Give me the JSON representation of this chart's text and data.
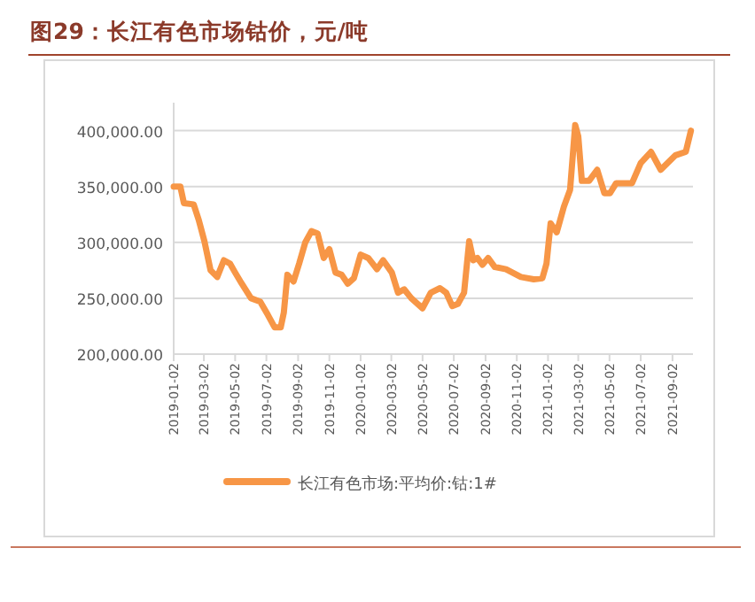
{
  "chart_data": {
    "type": "line",
    "title": "图29：长江有色市场钴价，元/吨",
    "x": [
      "2019-01-02",
      "2019-01-15",
      "2019-01-22",
      "2019-02-10",
      "2019-02-20",
      "2019-03-03",
      "2019-03-15",
      "2019-03-28",
      "2019-04-10",
      "2019-04-22",
      "2019-05-02",
      "2019-05-15",
      "2019-06-02",
      "2019-06-20",
      "2019-07-05",
      "2019-07-18",
      "2019-07-30",
      "2019-08-05",
      "2019-08-12",
      "2019-08-24",
      "2019-09-04",
      "2019-09-16",
      "2019-09-28",
      "2019-10-10",
      "2019-10-22",
      "2019-11-02",
      "2019-11-14",
      "2019-11-26",
      "2019-12-08",
      "2019-12-20",
      "2020-01-02",
      "2020-01-17",
      "2020-02-03",
      "2020-02-15",
      "2020-03-03",
      "2020-03-15",
      "2020-03-27",
      "2020-04-10",
      "2020-04-22",
      "2020-05-02",
      "2020-05-18",
      "2020-06-05",
      "2020-06-17",
      "2020-06-29",
      "2020-07-10",
      "2020-07-22",
      "2020-08-01",
      "2020-08-09",
      "2020-08-17",
      "2020-08-27",
      "2020-09-07",
      "2020-09-20",
      "2020-10-12",
      "2020-11-10",
      "2020-12-05",
      "2020-12-22",
      "2020-12-30",
      "2021-01-07",
      "2021-01-19",
      "2021-02-02",
      "2021-02-14",
      "2021-02-24",
      "2021-03-02",
      "2021-03-09",
      "2021-03-23",
      "2021-04-08",
      "2021-04-22",
      "2021-05-03",
      "2021-05-15",
      "2021-06-15",
      "2021-07-02",
      "2021-07-22",
      "2021-08-10",
      "2021-09-08",
      "2021-09-28",
      "2021-10-08"
    ],
    "series": [
      {
        "name": "长江有色市场:平均价:钴:1#",
        "color": "#f79646",
        "values": [
          350000,
          350000,
          335000,
          334000,
          320000,
          301000,
          275000,
          269000,
          284000,
          281000,
          273000,
          263000,
          250000,
          247000,
          235000,
          224000,
          224000,
          237000,
          271000,
          265000,
          281000,
          300000,
          310000,
          308000,
          286000,
          294000,
          273000,
          271000,
          263000,
          268000,
          289000,
          286000,
          276000,
          284000,
          273000,
          255000,
          258000,
          250000,
          245000,
          241000,
          255000,
          259000,
          255000,
          243000,
          245000,
          255000,
          301000,
          284000,
          286000,
          280000,
          286000,
          278000,
          276000,
          269000,
          267000,
          268000,
          281000,
          317000,
          309000,
          332000,
          347000,
          405000,
          395000,
          355000,
          355000,
          365000,
          344000,
          344000,
          353000,
          353000,
          371000,
          381000,
          365000,
          378000,
          381000,
          400000
        ]
      }
    ],
    "xlim": [
      "2019-01-02",
      "2021-10-12"
    ],
    "xticks": [
      "2019-01-02",
      "2019-03-02",
      "2019-05-02",
      "2019-07-02",
      "2019-09-02",
      "2019-11-02",
      "2020-01-02",
      "2020-03-02",
      "2020-05-02",
      "2020-07-02",
      "2020-09-02",
      "2020-11-02",
      "2021-01-02",
      "2021-03-02",
      "2021-05-02",
      "2021-07-02",
      "2021-09-02"
    ],
    "ylim": [
      200000,
      425000
    ],
    "yticks": [
      {
        "value": 200000,
        "label": "200,000.00"
      },
      {
        "value": 250000,
        "label": "250,000.00"
      },
      {
        "value": 300000,
        "label": "300,000.00"
      },
      {
        "value": 350000,
        "label": "350,000.00"
      },
      {
        "value": 400000,
        "label": "400,000.00"
      }
    ],
    "grid": "y",
    "legend": "bottom",
    "marker": "none",
    "line_style": "solid"
  }
}
